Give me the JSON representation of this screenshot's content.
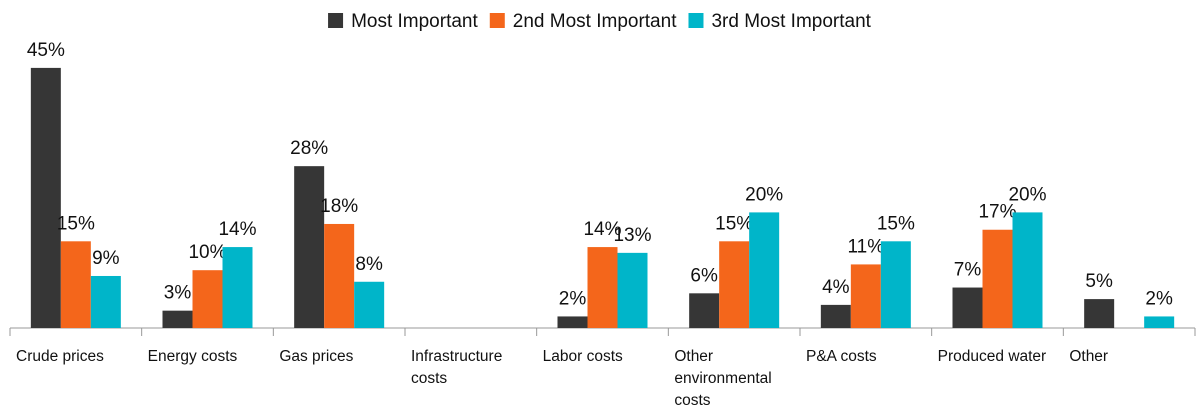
{
  "chart_data": {
    "type": "bar",
    "categories": [
      "Crude prices",
      "Energy costs",
      "Gas prices",
      "Infrastructure costs",
      "Labor costs",
      "Other environmental costs",
      "P&A costs",
      "Produced water",
      "Other"
    ],
    "series": [
      {
        "name": "Most Important",
        "color": "#363636",
        "values": [
          45,
          3,
          28,
          null,
          2,
          6,
          4,
          7,
          5
        ],
        "value_labels": [
          "45%",
          "3%",
          "28%",
          null,
          "2%",
          "6%",
          "4%",
          "7%",
          "5%"
        ]
      },
      {
        "name": "2nd Most Important",
        "color": "#f4661b",
        "values": [
          15,
          10,
          18,
          null,
          14,
          15,
          11,
          17,
          null
        ],
        "value_labels": [
          "15%",
          "10%",
          "18%",
          null,
          "14%",
          "15%",
          "11%",
          "17%",
          null
        ]
      },
      {
        "name": "3rd Most Important",
        "color": "#00b5c9",
        "values": [
          9,
          14,
          8,
          null,
          13,
          20,
          15,
          20,
          2
        ],
        "value_labels": [
          "9%",
          "14%",
          "8%",
          null,
          "13%",
          "20%",
          "15%",
          "20%",
          "2%"
        ]
      }
    ],
    "legend": "top"
  }
}
